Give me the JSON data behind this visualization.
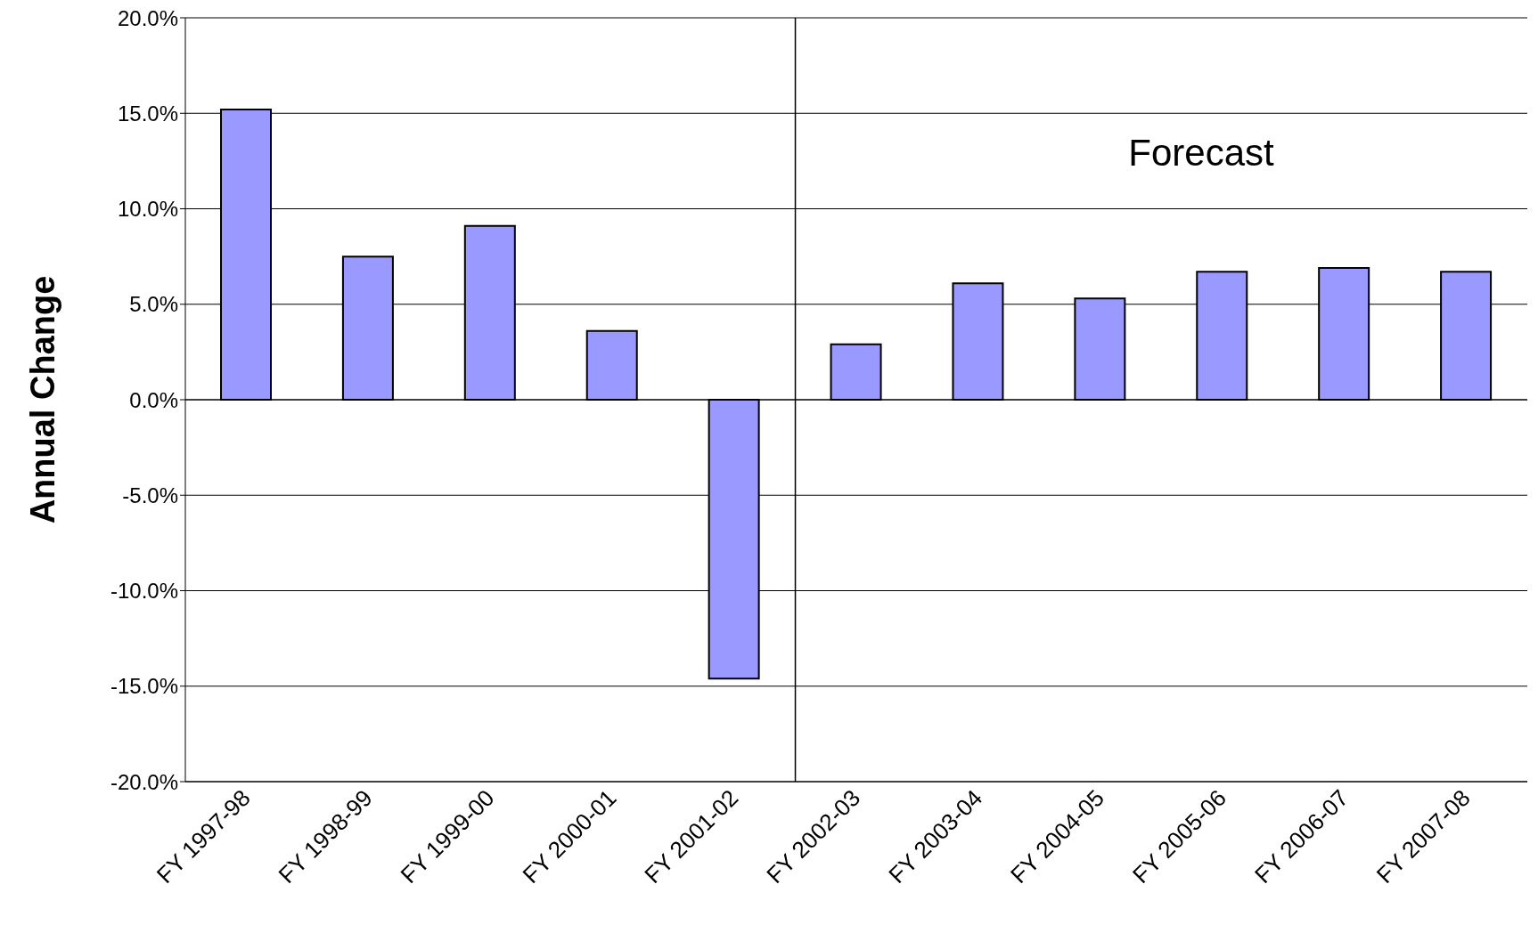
{
  "chart_data": {
    "type": "bar",
    "ylabel": "Annual Change",
    "categories": [
      "FY 1997-98",
      "FY 1998-99",
      "FY 1999-00",
      "FY 2000-01",
      "FY 2001-02",
      "FY 2002-03",
      "FY 2003-04",
      "FY 2004-05",
      "FY 2005-06",
      "FY 2006-07",
      "FY 2007-08"
    ],
    "values": [
      15.2,
      7.5,
      9.1,
      3.6,
      -14.6,
      2.9,
      6.1,
      5.3,
      6.7,
      6.9,
      6.7
    ],
    "color": "#9999ff",
    "ylim": [
      -20,
      20
    ],
    "yticks": [
      {
        "value": -20,
        "label": "-20.0%"
      },
      {
        "value": -15,
        "label": "-15.0%"
      },
      {
        "value": -10,
        "label": "-10.0%"
      },
      {
        "value": -5,
        "label": "-5.0%"
      },
      {
        "value": 0,
        "label": "0.0%"
      },
      {
        "value": 5,
        "label": "5.0%"
      },
      {
        "value": 10,
        "label": "10.0%"
      },
      {
        "value": 15,
        "label": "15.0%"
      },
      {
        "value": 20,
        "label": "20.0%"
      }
    ],
    "grid": "y",
    "ref_lines": [
      {
        "axis": "x",
        "value": "FY 2002-03",
        "color": "#000000"
      }
    ],
    "annotations": [
      "Forecast"
    ]
  }
}
